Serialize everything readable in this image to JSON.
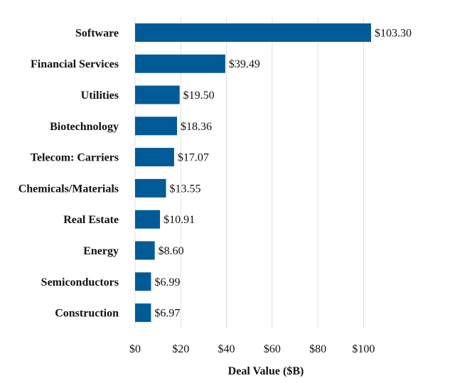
{
  "chart_data": {
    "type": "bar",
    "orientation": "horizontal",
    "categories": [
      "Software",
      "Financial Services",
      "Utilities",
      "Biotechnology",
      "Telecom: Carriers",
      "Chemicals/Materials",
      "Real Estate",
      "Energy",
      "Semiconductors",
      "Construction"
    ],
    "values": [
      103.3,
      39.49,
      19.5,
      18.36,
      17.07,
      13.55,
      10.91,
      8.6,
      6.99,
      6.97
    ],
    "value_labels": [
      "$103.30",
      "$39.49",
      "$19.50",
      "$18.36",
      "$17.07",
      "$13.55",
      "$10.91",
      "$8.60",
      "$6.99",
      "$6.97"
    ],
    "x_ticks": [
      0,
      20,
      40,
      60,
      80,
      100
    ],
    "x_tick_labels": [
      "$0",
      "$20",
      "$40",
      "$60",
      "$80",
      "$100"
    ],
    "xlim": [
      0,
      103.3
    ],
    "xlabel": "Deal Value ($B)",
    "ylabel": "",
    "title": "",
    "grid": "vertical",
    "bar_color": "#005b96"
  }
}
